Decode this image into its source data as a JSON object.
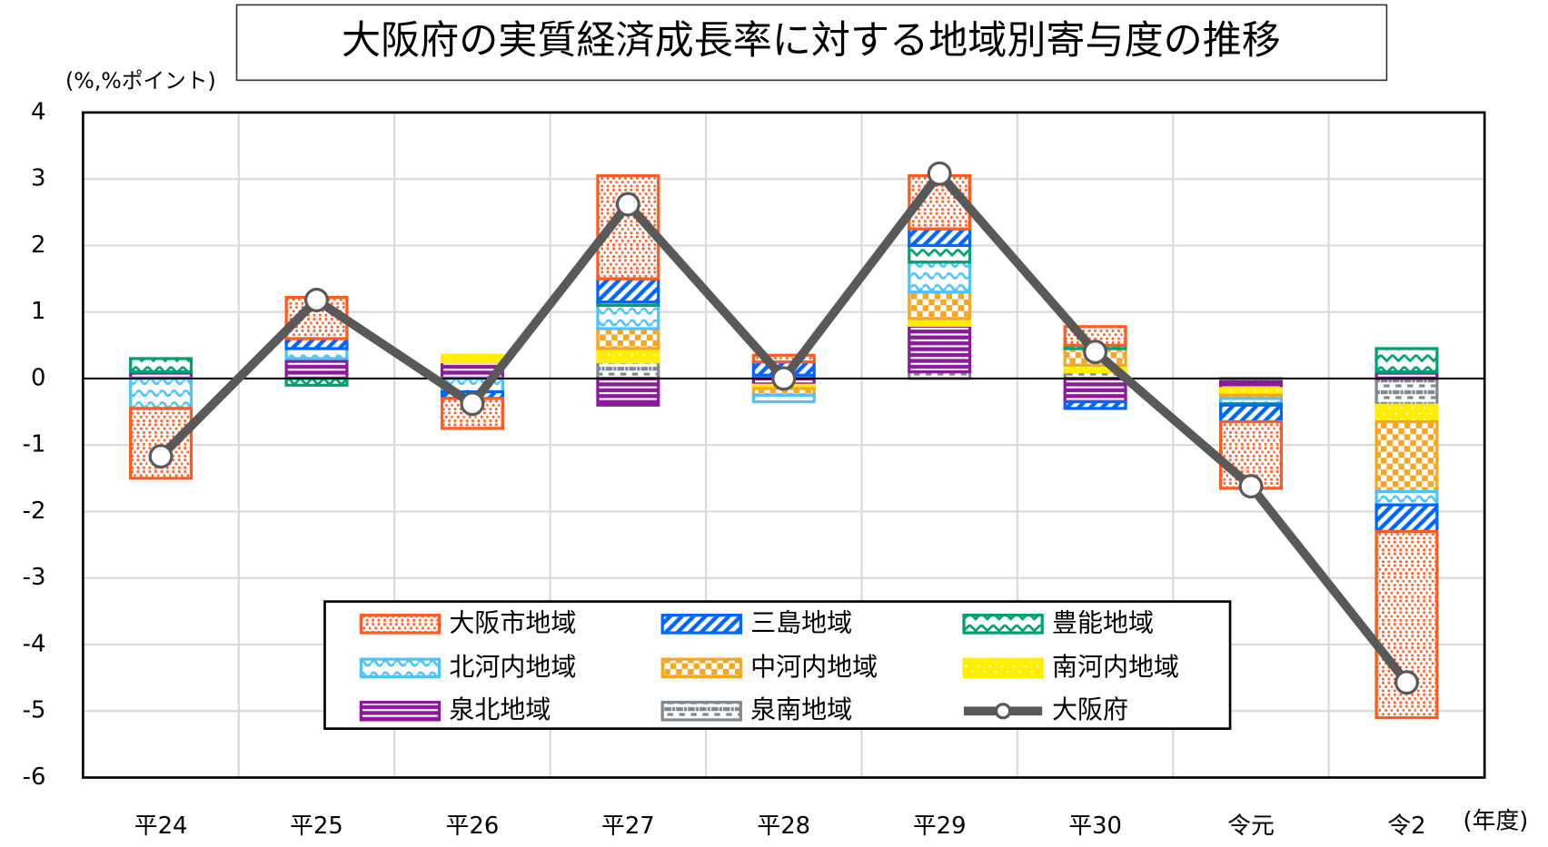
{
  "chart_data": {
    "type": "bar_line",
    "stacked": true,
    "title": "大阪府の実質経済成長率に対する地域別寄与度の推移",
    "y_label": "(%,%ポイント)",
    "x_label": "(年度)",
    "categories": [
      "平24",
      "平25",
      "平26",
      "平27",
      "平28",
      "平29",
      "平30",
      "令元",
      "令2"
    ],
    "series": [
      {
        "name": "大阪市地域",
        "color": "#ff5a1f",
        "pattern": "dots",
        "values": [
          -1.05,
          0.62,
          -0.45,
          1.55,
          0.1,
          0.8,
          0.28,
          -1.0,
          -2.8
        ]
      },
      {
        "name": "三島地域",
        "color": "#0066ff",
        "pattern": "diagonal",
        "values": [
          0,
          0.15,
          -0.1,
          0.35,
          0.2,
          0.25,
          -0.1,
          -0.25,
          -0.4
        ]
      },
      {
        "name": "豊能地域",
        "color": "#00a070",
        "pattern": "zigzag",
        "values": [
          0.2,
          -0.1,
          0,
          0.05,
          0,
          0.25,
          0.05,
          -0.02,
          0.35
        ]
      },
      {
        "name": "北河内地域",
        "color": "#4fc3f7",
        "pattern": "wave",
        "values": [
          -0.45,
          0.15,
          -0.2,
          0.35,
          -0.1,
          0.45,
          0,
          -0.08,
          -0.2
        ]
      },
      {
        "name": "中河内地域",
        "color": "#f5a623",
        "pattern": "checker",
        "values": [
          0,
          0,
          0,
          0.3,
          -0.1,
          0.4,
          0.25,
          -0.05,
          -1.05
        ]
      },
      {
        "name": "南河内地域",
        "color": "#ffee00",
        "pattern": "grid",
        "values": [
          0,
          0,
          0.1,
          0.2,
          -0.05,
          0.1,
          0.1,
          -0.1,
          -0.25
        ]
      },
      {
        "name": "泉北地域",
        "color": "#8b1a9b",
        "pattern": "stripes",
        "values": [
          0.1,
          0.3,
          0.25,
          -0.4,
          -0.1,
          0.7,
          -0.35,
          -0.1,
          0.1
        ]
      },
      {
        "name": "泉南地域",
        "color": "#808890",
        "pattern": "dashes",
        "values": [
          0,
          0,
          0,
          0.25,
          0.05,
          0.1,
          0.1,
          -0.05,
          -0.4
        ]
      }
    ],
    "line": {
      "name": "大阪府",
      "color": "#595959",
      "values": [
        -1.17,
        1.18,
        -0.38,
        2.62,
        0.0,
        3.08,
        0.4,
        -1.62,
        -4.57
      ]
    },
    "ylim": [
      -6,
      4
    ],
    "yticks": [
      -6,
      -5,
      -4,
      -3,
      -2,
      -1,
      0,
      1,
      2,
      3,
      4
    ],
    "grid": true
  }
}
